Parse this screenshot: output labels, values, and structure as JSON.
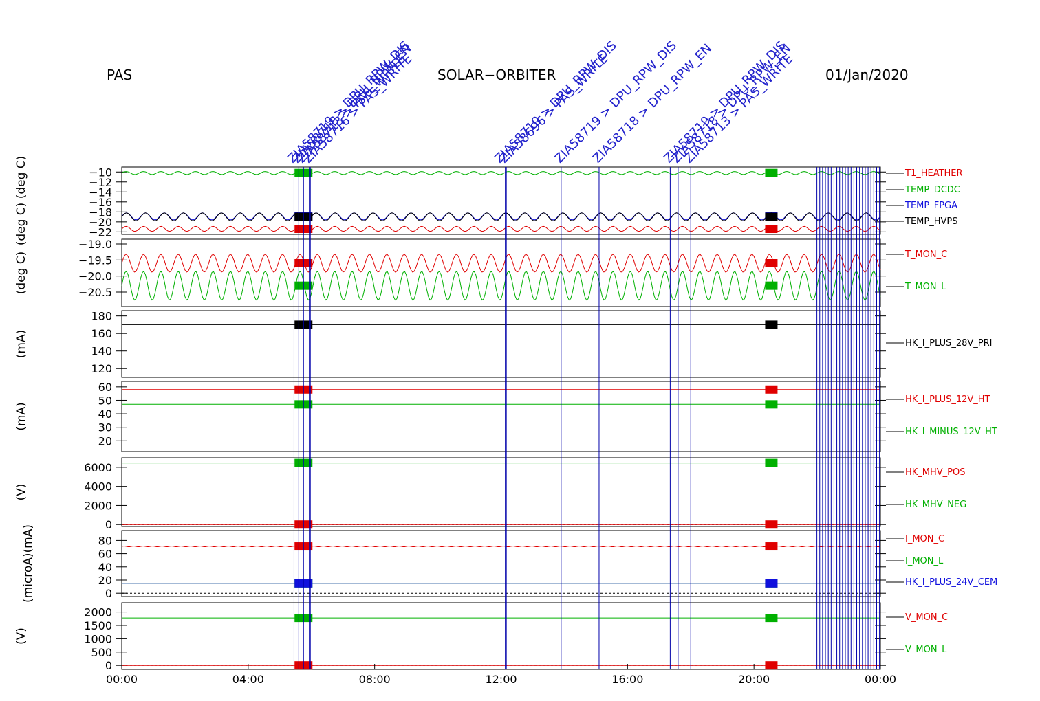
{
  "header": {
    "left": "PAS",
    "center": "SOLAR−ORBITER",
    "right": "01/Jan/2020"
  },
  "colors": {
    "red": "#e00000",
    "green": "#00b000",
    "blue": "#1010dd",
    "black": "#000000",
    "event_line": "#0000aa"
  },
  "chart_data": {
    "type": "line",
    "x_axis": {
      "ticks": [
        "00:00",
        "04:00",
        "08:00",
        "12:00",
        "16:00",
        "20:00",
        "00:00"
      ],
      "range_hours": [
        0,
        24
      ]
    },
    "events": [
      {
        "hour": 5.45,
        "label": "ZIA58719 > DPU_RPW_DIS"
      },
      {
        "hour": 5.6,
        "label": "ZIA58718 > DPU_RPW_EN"
      },
      {
        "hour": 5.75,
        "label": "ZIA58713 > PAS_WRITE"
      },
      {
        "hour": 5.95,
        "label": "ZIA58716 > PAS_WRITE"
      },
      {
        "hour": 12.0,
        "label": "ZIA58719 > DPU_RPW_DIS"
      },
      {
        "hour": 12.15,
        "label": "ZIA58696 > PAS_WRITE"
      },
      {
        "hour": 13.9,
        "label": "ZIA58719 > DPU_RPW_DIS"
      },
      {
        "hour": 15.1,
        "label": "ZIA58718 > DPU_RPW_EN"
      },
      {
        "hour": 17.35,
        "label": "ZIA58719 > DPU_RPW_DIS"
      },
      {
        "hour": 17.6,
        "label": "ZIA58718 > DPU_RPW_EN"
      },
      {
        "hour": 18.0,
        "label": "ZIA58713 > PAS_WRITE"
      }
    ],
    "panels": [
      {
        "ylabel": "(deg C)  (deg C)",
        "ylim": [
          -22.5,
          -9
        ],
        "ticks": [
          -10,
          -12,
          -14,
          -16,
          -18,
          -20,
          -22
        ],
        "tick_labels": [
          "−10",
          "−12",
          "−14",
          "−16",
          "−18",
          "−20",
          "−22"
        ],
        "series": [
          {
            "name": "T1_HEATHER",
            "color": "red",
            "value": -21.4,
            "amp": 0.5,
            "period": 0.55
          },
          {
            "name": "TEMP_DCDC",
            "color": "green",
            "value": -10.2,
            "amp": 0.3,
            "period": 0.55
          },
          {
            "name": "TEMP_FPGA",
            "color": "blue",
            "value": -18.9,
            "amp": 0.7,
            "period": 0.6
          },
          {
            "name": "TEMP_HVPS",
            "color": "black",
            "value": -19.0,
            "amp": 0.8,
            "period": 0.6
          }
        ]
      },
      {
        "ylabel": "(deg C)",
        "ylim": [
          -20.95,
          -18.85
        ],
        "ticks": [
          -19.0,
          -19.5,
          -20.0,
          -20.5
        ],
        "tick_labels": [
          "−19.0",
          "−19.5",
          "−20.0",
          "−20.5"
        ],
        "series": [
          {
            "name": "T_MON_C",
            "color": "red",
            "value": -19.6,
            "amp": 0.28,
            "period": 0.55
          },
          {
            "name": "T_MON_L",
            "color": "green",
            "value": -20.3,
            "amp": 0.45,
            "period": 0.55
          }
        ]
      },
      {
        "ylabel": "(mA)",
        "ylim": [
          110,
          186
        ],
        "ticks": [
          180,
          160,
          140,
          120
        ],
        "tick_labels": [
          "180",
          "160",
          "140",
          "120"
        ],
        "series": [
          {
            "name": "HK_I_PLUS_28V_PRI",
            "color": "black",
            "value": 170,
            "amp": 0,
            "period": 1
          }
        ]
      },
      {
        "ylabel": "(mA)",
        "ylim": [
          12,
          64
        ],
        "ticks": [
          60,
          50,
          40,
          30,
          20
        ],
        "tick_labels": [
          "60",
          "50",
          "40",
          "30",
          "20"
        ],
        "series": [
          {
            "name": "HK_I_PLUS_12V_HT",
            "color": "red",
            "value": 58,
            "amp": 0,
            "period": 1
          },
          {
            "name": "HK_I_MINUS_12V_HT",
            "color": "green",
            "value": 47,
            "amp": 0,
            "period": 1
          }
        ]
      },
      {
        "ylabel": "(V)",
        "ylim": [
          -200,
          7000
        ],
        "ticks": [
          6000,
          4000,
          2000,
          0
        ],
        "tick_labels": [
          "6000",
          "4000",
          "2000",
          "0"
        ],
        "series": [
          {
            "name": "HK_MHV_POS",
            "color": "red",
            "value": 0,
            "amp": 0,
            "period": 1
          },
          {
            "name": "HK_MHV_NEG",
            "color": "green",
            "value": 6450,
            "amp": 0,
            "period": 1
          }
        ]
      },
      {
        "ylabel": "(microA)(mA)",
        "ylim": [
          -5,
          95
        ],
        "ticks": [
          80,
          60,
          40,
          20,
          0
        ],
        "tick_labels": [
          "80",
          "60",
          "40",
          "20",
          "0"
        ],
        "series": [
          {
            "name": "I_MON_C",
            "color": "red",
            "value": 71,
            "amp": 0.5,
            "period": 0.3
          },
          {
            "name": "I_MON_L",
            "color": "green",
            "value": 15,
            "amp": 0,
            "period": 1
          },
          {
            "name": "HK_I_PLUS_24V_CEM",
            "color": "blue",
            "value": 15,
            "amp": 0,
            "period": 1
          }
        ]
      },
      {
        "ylabel": "(V)",
        "ylim": [
          -150,
          2350
        ],
        "ticks": [
          2000,
          1500,
          1000,
          500,
          0
        ],
        "tick_labels": [
          "2000",
          "1500",
          "1000",
          "500",
          "0"
        ],
        "series": [
          {
            "name": "V_MON_C",
            "color": "red",
            "value": 0,
            "amp": 0,
            "period": 1
          },
          {
            "name": "V_MON_L",
            "color": "green",
            "value": 1780,
            "amp": 0,
            "period": 1
          }
        ]
      }
    ]
  }
}
